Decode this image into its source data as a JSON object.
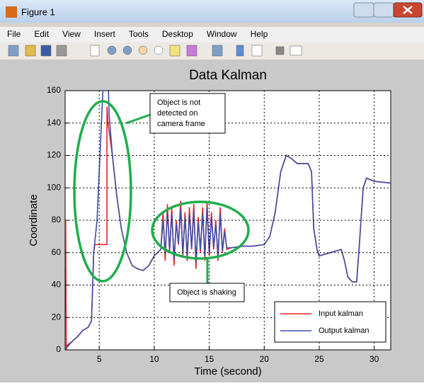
{
  "window": {
    "title": "Figure 1",
    "menu": [
      "File",
      "Edit",
      "View",
      "Insert",
      "Tools",
      "Desktop",
      "Window",
      "Help"
    ]
  },
  "chart_data": {
    "type": "line",
    "title": "Data Kalman",
    "xlabel": "Time (second)",
    "ylabel": "Coordinate",
    "xlim": [
      1.9,
      31.5
    ],
    "ylim": [
      0,
      160
    ],
    "xticks": [
      5,
      10,
      15,
      20,
      25,
      30
    ],
    "yticks": [
      0,
      20,
      40,
      60,
      80,
      100,
      120,
      140,
      160
    ],
    "grid": true,
    "legend": "lower right",
    "series": [
      {
        "name": "Input kalman",
        "color": "#e8242a",
        "x": [
          1.95,
          2.0,
          2.1,
          2.5,
          3,
          3.5,
          4,
          4.3,
          4.5,
          4.6,
          5.7,
          5.7,
          5.8,
          6.2,
          6.6,
          7,
          7.5,
          8,
          8.5,
          9,
          9.5,
          10,
          10.3,
          10.6,
          10.8,
          11.0,
          11.2,
          11.4,
          11.6,
          11.8,
          12.0,
          12.2,
          12.4,
          12.6,
          12.8,
          13.0,
          13.2,
          13.4,
          13.6,
          13.8,
          14.0,
          14.2,
          14.4,
          14.6,
          14.8,
          15.0,
          15.2,
          15.4,
          15.6,
          15.8,
          16.0,
          16.2,
          16.4,
          16.6,
          17,
          18,
          19,
          20,
          20.5,
          21,
          21.5,
          22,
          22.5,
          23,
          24,
          24.3,
          24.5,
          24.8,
          25,
          26,
          27,
          27.3,
          27.6,
          28,
          28.4,
          28.6,
          28.8,
          29,
          29.3,
          30,
          31.5
        ],
        "values": [
          80,
          0,
          3,
          5,
          8,
          12,
          14,
          18,
          60,
          65,
          65,
          150,
          140,
          120,
          95,
          75,
          60,
          52,
          50,
          49,
          52,
          58,
          60,
          62,
          85,
          55,
          90,
          60,
          88,
          52,
          80,
          65,
          92,
          58,
          85,
          55,
          88,
          62,
          90,
          50,
          82,
          60,
          88,
          55,
          92,
          58,
          85,
          62,
          80,
          55,
          88,
          60,
          75,
          62,
          63,
          64,
          64,
          65,
          70,
          85,
          110,
          120,
          118,
          115,
          115,
          110,
          75,
          62,
          58,
          60,
          62,
          55,
          45,
          42,
          42,
          60,
          80,
          100,
          106,
          104,
          103
        ]
      },
      {
        "name": "Output kalman",
        "color": "#3b4fa8",
        "x": [
          2.0,
          2.5,
          3,
          3.5,
          4,
          4.3,
          4.5,
          4.8,
          5.0,
          5.2,
          5.4,
          5.8,
          5.9,
          6.2,
          6.6,
          7,
          7.5,
          8,
          8.5,
          9,
          9.5,
          10,
          10.6,
          10.8,
          11.0,
          11.2,
          11.4,
          11.6,
          11.8,
          12.0,
          12.2,
          12.4,
          12.6,
          12.8,
          13.0,
          13.2,
          13.4,
          13.6,
          13.8,
          14.0,
          14.2,
          14.4,
          14.6,
          14.8,
          15.0,
          15.2,
          15.4,
          15.6,
          15.8,
          16.0,
          16.2,
          16.4,
          16.6,
          17,
          18,
          19,
          20,
          20.5,
          21,
          21.5,
          22,
          22.5,
          23,
          24,
          24.3,
          24.5,
          24.8,
          25,
          26,
          27,
          27.3,
          27.6,
          28,
          28.4,
          28.6,
          28.8,
          29,
          29.3,
          30,
          31.5
        ],
        "values": [
          1,
          5,
          8,
          12,
          14,
          18,
          60,
          80,
          110,
          140,
          170,
          170,
          145,
          120,
          95,
          75,
          60,
          52,
          50,
          49,
          52,
          58,
          62,
          80,
          60,
          85,
          62,
          84,
          56,
          78,
          66,
          87,
          60,
          82,
          58,
          84,
          63,
          86,
          54,
          79,
          62,
          84,
          58,
          88,
          60,
          82,
          63,
          78,
          58,
          84,
          61,
          73,
          63,
          63,
          64,
          64,
          65,
          70,
          85,
          110,
          120,
          118,
          115,
          115,
          110,
          75,
          62,
          58,
          60,
          62,
          55,
          45,
          42,
          42,
          60,
          80,
          100,
          106,
          104,
          103
        ]
      }
    ],
    "annotations": [
      [
        "Object is not",
        "detected on",
        "camera frame"
      ],
      [
        "Object is shaking"
      ]
    ]
  }
}
